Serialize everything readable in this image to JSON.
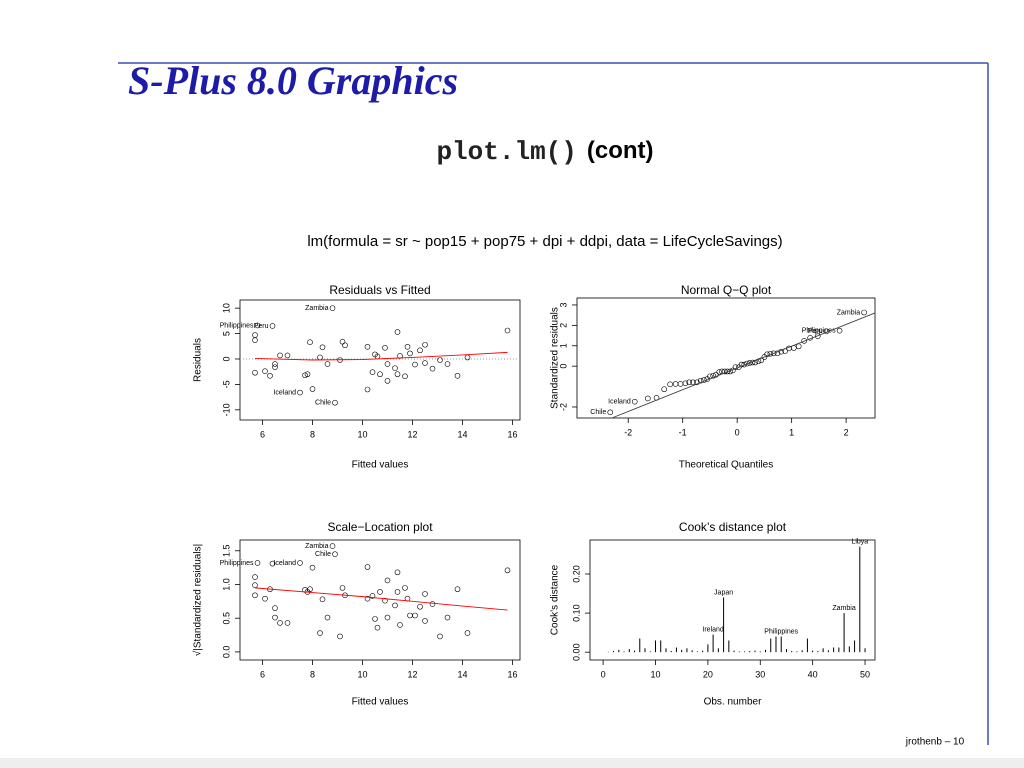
{
  "title": "S-Plus 8.0 Graphics",
  "subtitle": {
    "code": "plot.lm()",
    "rest": "(cont)"
  },
  "model": "lm(formula = sr ~ pop15 + pop75 + dpi + ddpi, data = LifeCycleSavings)",
  "footer": "jrothenb – 10",
  "chart_data": [
    {
      "type": "scatter",
      "title": "Residuals vs Fitted",
      "x_label": "Fitted values",
      "y_label": "Residuals",
      "xlim": [
        5.1,
        16.3
      ],
      "ylim": [
        -12,
        11.6
      ],
      "xticks": [
        6,
        8,
        10,
        12,
        14,
        16
      ],
      "yticks": [
        -10,
        -5,
        0,
        5,
        10
      ],
      "hline": 0,
      "color": "#000000",
      "x": [
        5.7,
        5.7,
        5.8,
        6.4,
        5.7,
        6.1,
        6.3,
        6.5,
        6.5,
        6.7,
        7,
        7.5,
        7.7,
        7.8,
        7.9,
        8,
        8.3,
        8.4,
        8.6,
        8.8,
        8.9,
        9.1,
        9.2,
        9.3,
        10.2,
        10.2,
        10.4,
        10.5,
        10.6,
        10.7,
        10.9,
        11,
        11,
        11.3,
        11.4,
        11.4,
        11.5,
        11.7,
        11.8,
        11.9,
        12.1,
        12.3,
        12.5,
        12.5,
        12.8,
        13.1,
        13.4,
        13.8,
        14.2,
        15.8
      ],
      "y": [
        4.7,
        3.7,
        6.6,
        6.5,
        -2.7,
        -2.4,
        -3.3,
        -1,
        -1.6,
        0.7,
        0.7,
        -6.6,
        -3.2,
        -3,
        3.3,
        -5.9,
        0.3,
        2.3,
        -1,
        10,
        -8.6,
        -0.2,
        3.4,
        2.7,
        2.4,
        -6,
        -2.6,
        0.9,
        0.5,
        -3,
        2.2,
        -4.3,
        -1,
        -1.8,
        -3,
        5.3,
        0.6,
        -3.4,
        2.4,
        1.1,
        -1.1,
        1.7,
        2.8,
        -0.8,
        -1.9,
        -0.2,
        -1,
        -3.3,
        0.3,
        5.6
      ],
      "point_labels": [
        null,
        null,
        "Philippines",
        "Peru",
        null,
        null,
        null,
        null,
        null,
        null,
        null,
        "Iceland",
        null,
        null,
        null,
        null,
        null,
        null,
        null,
        "Zambia",
        "Chile",
        null,
        null,
        null,
        null,
        null,
        null,
        null,
        null,
        null,
        null,
        null,
        null,
        null,
        null,
        null,
        null,
        null,
        null,
        null,
        null,
        null,
        null,
        null,
        null,
        null,
        null,
        null,
        null,
        null
      ],
      "smooth": {
        "color": "#ff0000",
        "x": [
          5.7,
          8,
          10,
          12,
          14,
          15.8
        ],
        "y": [
          0.1,
          -0.2,
          -0.1,
          0.3,
          0.8,
          1.3
        ]
      }
    },
    {
      "type": "scatter",
      "title": "Normal Q−Q plot",
      "x_label": "Theoretical Quantiles",
      "y_label": "Standardized residuals",
      "xlim": [
        -2.94,
        2.53
      ],
      "ylim": [
        -2.54,
        3.34
      ],
      "xticks": [
        -2,
        -1,
        0,
        1,
        2
      ],
      "yticks": [
        -2,
        0,
        1,
        2,
        3
      ],
      "color": "#000000",
      "x": [
        -2.33,
        -1.88,
        -1.64,
        -1.48,
        -1.34,
        -1.23,
        -1.13,
        -1.04,
        -0.95,
        -0.88,
        -0.81,
        -0.74,
        -0.67,
        -0.61,
        -0.55,
        -0.5,
        -0.44,
        -0.39,
        -0.33,
        -0.28,
        -0.23,
        -0.18,
        -0.13,
        -0.08,
        -0.03,
        0.03,
        0.08,
        0.13,
        0.18,
        0.23,
        0.28,
        0.33,
        0.39,
        0.44,
        0.5,
        0.55,
        0.61,
        0.67,
        0.74,
        0.81,
        0.88,
        0.95,
        1.04,
        1.13,
        1.23,
        1.34,
        1.48,
        1.64,
        1.88,
        2.33
      ],
      "y": [
        -2.26,
        -1.74,
        -1.58,
        -1.55,
        -1.13,
        -0.89,
        -0.87,
        -0.87,
        -0.84,
        -0.79,
        -0.79,
        -0.79,
        -0.71,
        -0.68,
        -0.63,
        -0.5,
        -0.47,
        -0.42,
        -0.29,
        -0.26,
        -0.26,
        -0.26,
        -0.26,
        -0.21,
        -0.05,
        -0.05,
        0.08,
        0.08,
        0.13,
        0.16,
        0.18,
        0.18,
        0.24,
        0.29,
        0.45,
        0.58,
        0.61,
        0.63,
        0.63,
        0.71,
        0.74,
        0.87,
        0.89,
        0.97,
        1.24,
        1.39,
        1.47,
        1.71,
        1.74,
        2.63
      ],
      "point_labels": [
        "Chile",
        "Iceland",
        null,
        null,
        null,
        null,
        null,
        null,
        null,
        null,
        null,
        null,
        null,
        null,
        null,
        null,
        null,
        null,
        null,
        null,
        null,
        null,
        null,
        null,
        null,
        null,
        null,
        null,
        null,
        null,
        null,
        null,
        null,
        null,
        null,
        null,
        null,
        null,
        null,
        null,
        null,
        null,
        null,
        null,
        null,
        null,
        null,
        "Peru",
        "Philippines",
        "Zambia"
      ],
      "reference_line": {
        "color": "#444444",
        "x": [
          -2.3,
          2.53
        ],
        "y": [
          -2.54,
          2.61
        ]
      }
    },
    {
      "type": "scatter",
      "title": "Scale−Location plot",
      "x_label": "Fitted values",
      "y_label": "√|Standardized residuals|",
      "xlim": [
        5.1,
        16.3
      ],
      "ylim": [
        -0.12,
        1.66
      ],
      "xticks": [
        6,
        8,
        10,
        12,
        14,
        16
      ],
      "yticks": [
        {
          "value": 0,
          "label": "0.0"
        },
        0.5,
        {
          "value": 1,
          "label": "1.0"
        },
        1.5
      ],
      "color": "#000000",
      "x": [
        5.7,
        5.7,
        5.8,
        6.4,
        5.7,
        6.1,
        6.3,
        6.5,
        6.5,
        6.7,
        7,
        7.5,
        7.7,
        7.8,
        7.9,
        8,
        8.3,
        8.4,
        8.6,
        8.8,
        8.9,
        9.1,
        9.2,
        9.3,
        10.2,
        10.2,
        10.4,
        10.5,
        10.6,
        10.7,
        10.9,
        11,
        11,
        11.3,
        11.4,
        11.4,
        11.5,
        11.7,
        11.8,
        11.9,
        12.1,
        12.3,
        12.5,
        12.5,
        12.8,
        13.1,
        13.4,
        13.8,
        14.2,
        15.8
      ],
      "y": [
        1.11,
        0.99,
        1.32,
        1.31,
        0.84,
        0.79,
        0.93,
        0.51,
        0.65,
        0.43,
        0.43,
        1.32,
        0.92,
        0.89,
        0.93,
        1.25,
        0.28,
        0.78,
        0.51,
        1.57,
        1.45,
        0.23,
        0.95,
        0.84,
        0.79,
        1.26,
        0.83,
        0.49,
        0.36,
        0.89,
        0.76,
        1.06,
        0.51,
        0.69,
        0.89,
        1.18,
        0.4,
        0.95,
        0.79,
        0.54,
        0.54,
        0.67,
        0.86,
        0.46,
        0.71,
        0.23,
        0.51,
        0.93,
        0.28,
        1.21
      ],
      "point_labels": [
        null,
        null,
        "Philippines",
        null,
        null,
        null,
        null,
        null,
        null,
        null,
        null,
        "Iceland",
        null,
        null,
        null,
        null,
        null,
        null,
        null,
        "Zambia",
        "Chile",
        null,
        null,
        null,
        null,
        null,
        null,
        null,
        null,
        null,
        null,
        null,
        null,
        null,
        null,
        null,
        null,
        null,
        null,
        null,
        null,
        null,
        null,
        null,
        null,
        null,
        null,
        null,
        null,
        null
      ],
      "smooth": {
        "color": "#ff0000",
        "x": [
          5.7,
          8,
          10,
          12,
          14,
          15.8
        ],
        "y": [
          0.95,
          0.88,
          0.82,
          0.75,
          0.68,
          0.62
        ]
      }
    },
    {
      "type": "bar",
      "title": "Cook’s distance plot",
      "x_label": "Obs. number",
      "y_label": "Cook’s distance",
      "xlim": [
        -2.5,
        51.9
      ],
      "ylim": [
        -0.02,
        0.287
      ],
      "xticks": [
        0,
        10,
        20,
        30,
        40,
        50
      ],
      "yticks": [
        {
          "value": 0,
          "label": "0.00"
        },
        {
          "value": 0.1,
          "label": "0.10"
        },
        {
          "value": 0.2,
          "label": "0.20"
        }
      ],
      "color": "#000000",
      "x": [
        1,
        2,
        3,
        4,
        5,
        6,
        7,
        8,
        9,
        10,
        11,
        12,
        13,
        14,
        15,
        16,
        17,
        18,
        19,
        20,
        21,
        22,
        23,
        24,
        25,
        26,
        27,
        28,
        29,
        30,
        31,
        32,
        33,
        34,
        35,
        36,
        37,
        38,
        39,
        40,
        41,
        42,
        43,
        44,
        45,
        46,
        47,
        48,
        49,
        50
      ],
      "values": [
        0.001,
        0.003,
        0.006,
        0.002,
        0.008,
        0.004,
        0.035,
        0.01,
        0.002,
        0.03,
        0.03,
        0.01,
        0.003,
        0.012,
        0.006,
        0.01,
        0.005,
        0.002,
        0.004,
        0.02,
        0.045,
        0.01,
        0.14,
        0.03,
        0.004,
        0.002,
        0.002,
        0.003,
        0.004,
        0.002,
        0.006,
        0.035,
        0.04,
        0.04,
        0.008,
        0.003,
        0.002,
        0.005,
        0.035,
        0.004,
        0.003,
        0.01,
        0.005,
        0.012,
        0.012,
        0.1,
        0.015,
        0.03,
        0.27,
        0.01
      ],
      "point_labels": [
        null,
        null,
        null,
        null,
        null,
        null,
        null,
        null,
        null,
        null,
        null,
        null,
        null,
        null,
        null,
        null,
        null,
        null,
        null,
        null,
        "Ireland",
        null,
        "Japan",
        null,
        null,
        null,
        null,
        null,
        null,
        null,
        null,
        null,
        null,
        "Philippines",
        null,
        null,
        null,
        null,
        null,
        null,
        null,
        null,
        null,
        null,
        null,
        "Zambia",
        null,
        null,
        "Libya",
        null
      ]
    }
  ]
}
